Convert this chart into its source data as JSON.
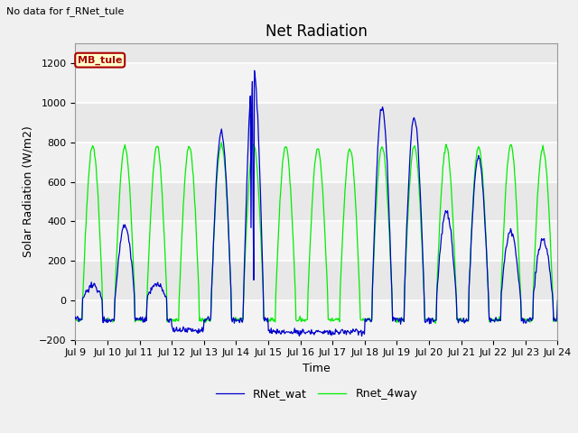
{
  "title": "Net Radiation",
  "xlabel": "Time",
  "ylabel": "Solar Radiation (W/m2)",
  "ylim": [
    -200,
    1300
  ],
  "yticks": [
    -200,
    0,
    200,
    400,
    600,
    800,
    1000,
    1200
  ],
  "xtick_labels": [
    "Jul 9",
    "Jul 10",
    "Jul 11",
    "Jul 12",
    "Jul 13",
    "Jul 14",
    "Jul 15",
    "Jul 16",
    "Jul 17",
    "Jul 18",
    "Jul 19",
    "Jul 20",
    "Jul 21",
    "Jul 22",
    "Jul 23",
    "Jul 24"
  ],
  "top_left_text": "No data for f_RNet_tule",
  "annotation_text": "MB_tule",
  "line1_color": "#0000cc",
  "line2_color": "#00ee00",
  "legend_labels": [
    "RNet_wat",
    "Rnet_4way"
  ],
  "axes_bg_color": "#e8e8e8",
  "title_fontsize": 12,
  "label_fontsize": 9,
  "tick_fontsize": 8,
  "legend_fontsize": 9
}
